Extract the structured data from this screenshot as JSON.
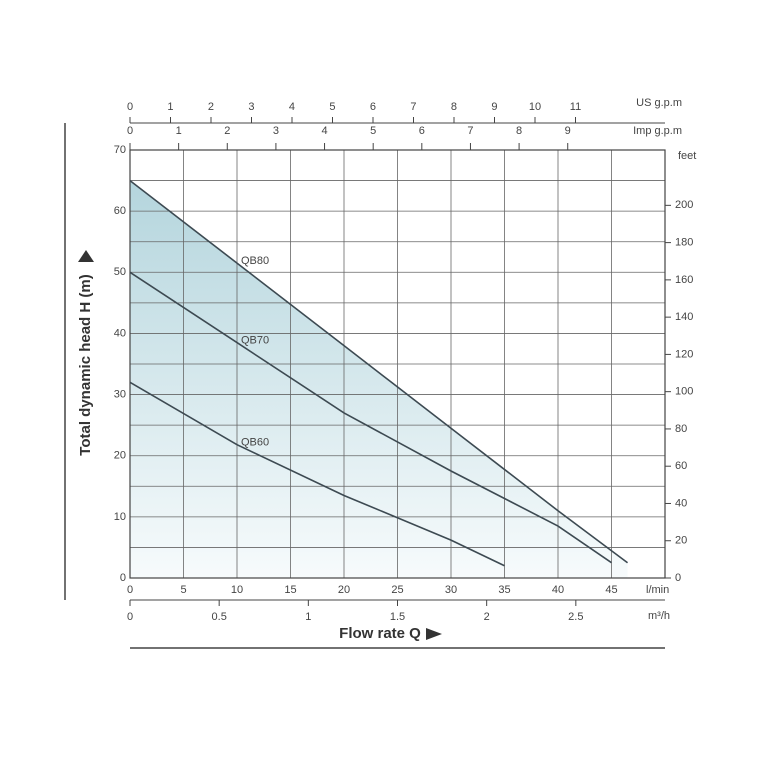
{
  "chart_data": {
    "type": "line",
    "y_label": "Total dynamic head  H (m)",
    "x_label": "Flow rate  Q",
    "x_unit": "l/min",
    "xlim": [
      0,
      50
    ],
    "xticks": [
      0,
      5,
      10,
      15,
      20,
      25,
      30,
      35,
      40,
      45
    ],
    "ylim": [
      0,
      70
    ],
    "yticks": [
      0,
      10,
      20,
      30,
      40,
      50,
      60,
      70
    ],
    "yminor": [
      5,
      15,
      25,
      35,
      45,
      55,
      65
    ],
    "y2_unit": "feet",
    "y2lim": [
      0,
      229.7
    ],
    "y2ticks": [
      0,
      20,
      40,
      60,
      80,
      100,
      120,
      140,
      160,
      180,
      200
    ],
    "top_axes": [
      {
        "unit": "US g.p.m",
        "lim": [
          0,
          13.21
        ],
        "ticks": [
          0,
          1,
          2,
          3,
          4,
          5,
          6,
          7,
          8,
          9,
          10,
          11
        ]
      },
      {
        "unit": "Imp g.p.m",
        "lim": [
          0,
          11.0
        ],
        "ticks": [
          0,
          1,
          2,
          3,
          4,
          5,
          6,
          7,
          8,
          9
        ]
      }
    ],
    "bottom_axis": {
      "unit": "m³/h",
      "lim": [
        0,
        3.0
      ],
      "ticks": [
        0,
        0.5,
        1,
        1.5,
        2,
        2.5
      ]
    },
    "grid": true,
    "series": [
      {
        "name": "QB80",
        "color": "#3d4a52",
        "area_color": "#b4d5dd",
        "x": [
          0,
          10,
          20,
          30,
          40,
          46.5
        ],
        "values": [
          65,
          51.5,
          38,
          24.5,
          11,
          2.5
        ]
      },
      {
        "name": "QB70",
        "color": "#3d4a52",
        "x": [
          0,
          10,
          20,
          30,
          40,
          45
        ],
        "values": [
          50,
          38.5,
          27,
          17.5,
          8.5,
          2.5
        ]
      },
      {
        "name": "QB60",
        "color": "#3d4a52",
        "x": [
          0,
          10,
          20,
          30,
          35
        ],
        "values": [
          32,
          21.8,
          13.5,
          6.2,
          2
        ]
      }
    ]
  }
}
